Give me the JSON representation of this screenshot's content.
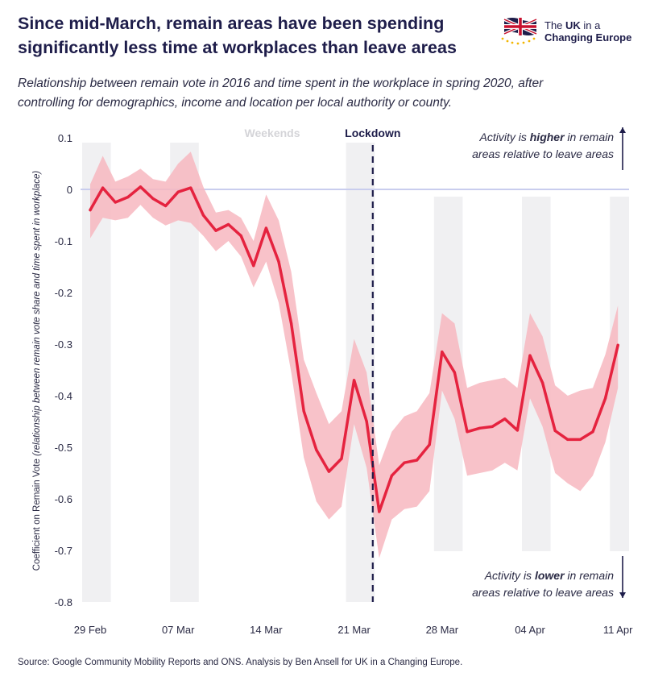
{
  "header": {
    "title_line1": "Since mid-March, remain areas have been spending",
    "title_line2": "significantly less time at workplaces than leave areas",
    "subtitle_line1": "Relationship between remain vote in 2016 and time spent in the workplace in spring 2020, after",
    "subtitle_line2": "controlling for demographics, income and location per local authority or county."
  },
  "logo": {
    "line1_prefix": "The ",
    "line1_bold": "UK",
    "line1_suffix": " in a",
    "line2": "Changing Europe",
    "colors": {
      "navy": "#1e1d4a",
      "red": "#c8102e",
      "gold": "#f2b705"
    }
  },
  "footer": {
    "source": "Source: Google Community Mobility Reports and ONS. Analysis by Ben Ansell for UK in a Changing Europe."
  },
  "chart_data": {
    "type": "line",
    "title": "",
    "xlabel": "",
    "ylabel": "Coefficient on Remain Vote (relationship between remain vote share and time spent in workplace)",
    "ylim": [
      -0.8,
      0.1
    ],
    "yticks": [
      "0.1",
      "0",
      "-0.1",
      "-0.2",
      "-0.3",
      "-0.4",
      "-0.5",
      "-0.6",
      "-0.7",
      "-0.8"
    ],
    "ytick_values": [
      0.1,
      0,
      -0.1,
      -0.2,
      -0.3,
      -0.4,
      -0.5,
      -0.6,
      -0.7,
      -0.8
    ],
    "xticks": [
      "29 Feb",
      "07 Mar",
      "14 Mar",
      "21 Mar",
      "28 Mar",
      "04 Apr",
      "11 Apr"
    ],
    "xtick_days": [
      0,
      7,
      14,
      21,
      28,
      35,
      42
    ],
    "x_start": "2020-02-29",
    "weekend_days": [
      [
        0,
        1
      ],
      [
        7,
        8
      ],
      [
        21,
        22
      ],
      [
        28,
        29
      ],
      [
        35,
        36
      ],
      [
        42,
        43
      ]
    ],
    "lockdown_day": 23,
    "weekends_label": "Weekends",
    "lockdown_label": "Lockdown",
    "annotation_higher": {
      "line1_prefix": "Activity is ",
      "line1_bold": "higher",
      "line1_suffix": " in remain",
      "line2": "areas relative to leave areas"
    },
    "annotation_lower": {
      "line1_prefix": "Activity is ",
      "line1_bold": "lower",
      "line1_suffix": " in remain",
      "line2": "areas relative to leave areas"
    },
    "colors": {
      "line": "#e5233f",
      "band": "#f7b7c0",
      "zero_line": "#c9cdee",
      "weekend": "#f0f0f2",
      "lockdown": "#1e1d4a"
    },
    "series": [
      {
        "days": [
          0,
          1,
          2,
          3,
          4,
          5,
          6,
          7,
          8,
          9,
          10,
          11,
          12,
          13,
          14,
          15,
          16,
          17,
          18,
          19,
          20,
          21,
          22,
          23,
          24,
          25,
          26,
          27,
          28,
          29,
          30,
          31,
          32,
          33,
          34,
          35,
          36,
          37,
          38,
          39,
          40,
          41,
          42
        ],
        "values": [
          -0.04,
          0.003,
          -0.025,
          -0.015,
          0.005,
          -0.018,
          -0.032,
          -0.005,
          0.003,
          -0.05,
          -0.08,
          -0.068,
          -0.09,
          -0.148,
          -0.075,
          -0.14,
          -0.26,
          -0.43,
          -0.505,
          -0.547,
          -0.522,
          -0.37,
          -0.45,
          -0.625,
          -0.555,
          -0.53,
          -0.525,
          -0.495,
          -0.315,
          -0.355,
          -0.47,
          -0.463,
          -0.46,
          -0.445,
          -0.467,
          -0.322,
          -0.375,
          -0.468,
          -0.485,
          -0.485,
          -0.47,
          -0.405,
          -0.302
        ],
        "upper": [
          0.01,
          0.065,
          0.015,
          0.025,
          0.04,
          0.02,
          0.015,
          0.05,
          0.073,
          0.005,
          -0.045,
          -0.04,
          -0.055,
          -0.1,
          -0.01,
          -0.06,
          -0.16,
          -0.33,
          -0.395,
          -0.455,
          -0.43,
          -0.29,
          -0.355,
          -0.535,
          -0.47,
          -0.44,
          -0.43,
          -0.395,
          -0.24,
          -0.26,
          -0.385,
          -0.375,
          -0.37,
          -0.365,
          -0.385,
          -0.24,
          -0.285,
          -0.38,
          -0.4,
          -0.39,
          -0.385,
          -0.32,
          -0.225
        ],
        "lower": [
          -0.095,
          -0.055,
          -0.06,
          -0.055,
          -0.03,
          -0.055,
          -0.07,
          -0.06,
          -0.065,
          -0.09,
          -0.12,
          -0.1,
          -0.13,
          -0.19,
          -0.14,
          -0.22,
          -0.355,
          -0.52,
          -0.605,
          -0.64,
          -0.615,
          -0.455,
          -0.54,
          -0.715,
          -0.64,
          -0.62,
          -0.615,
          -0.585,
          -0.39,
          -0.445,
          -0.555,
          -0.55,
          -0.545,
          -0.53,
          -0.545,
          -0.405,
          -0.46,
          -0.55,
          -0.57,
          -0.585,
          -0.555,
          -0.49,
          -0.385
        ]
      }
    ]
  }
}
